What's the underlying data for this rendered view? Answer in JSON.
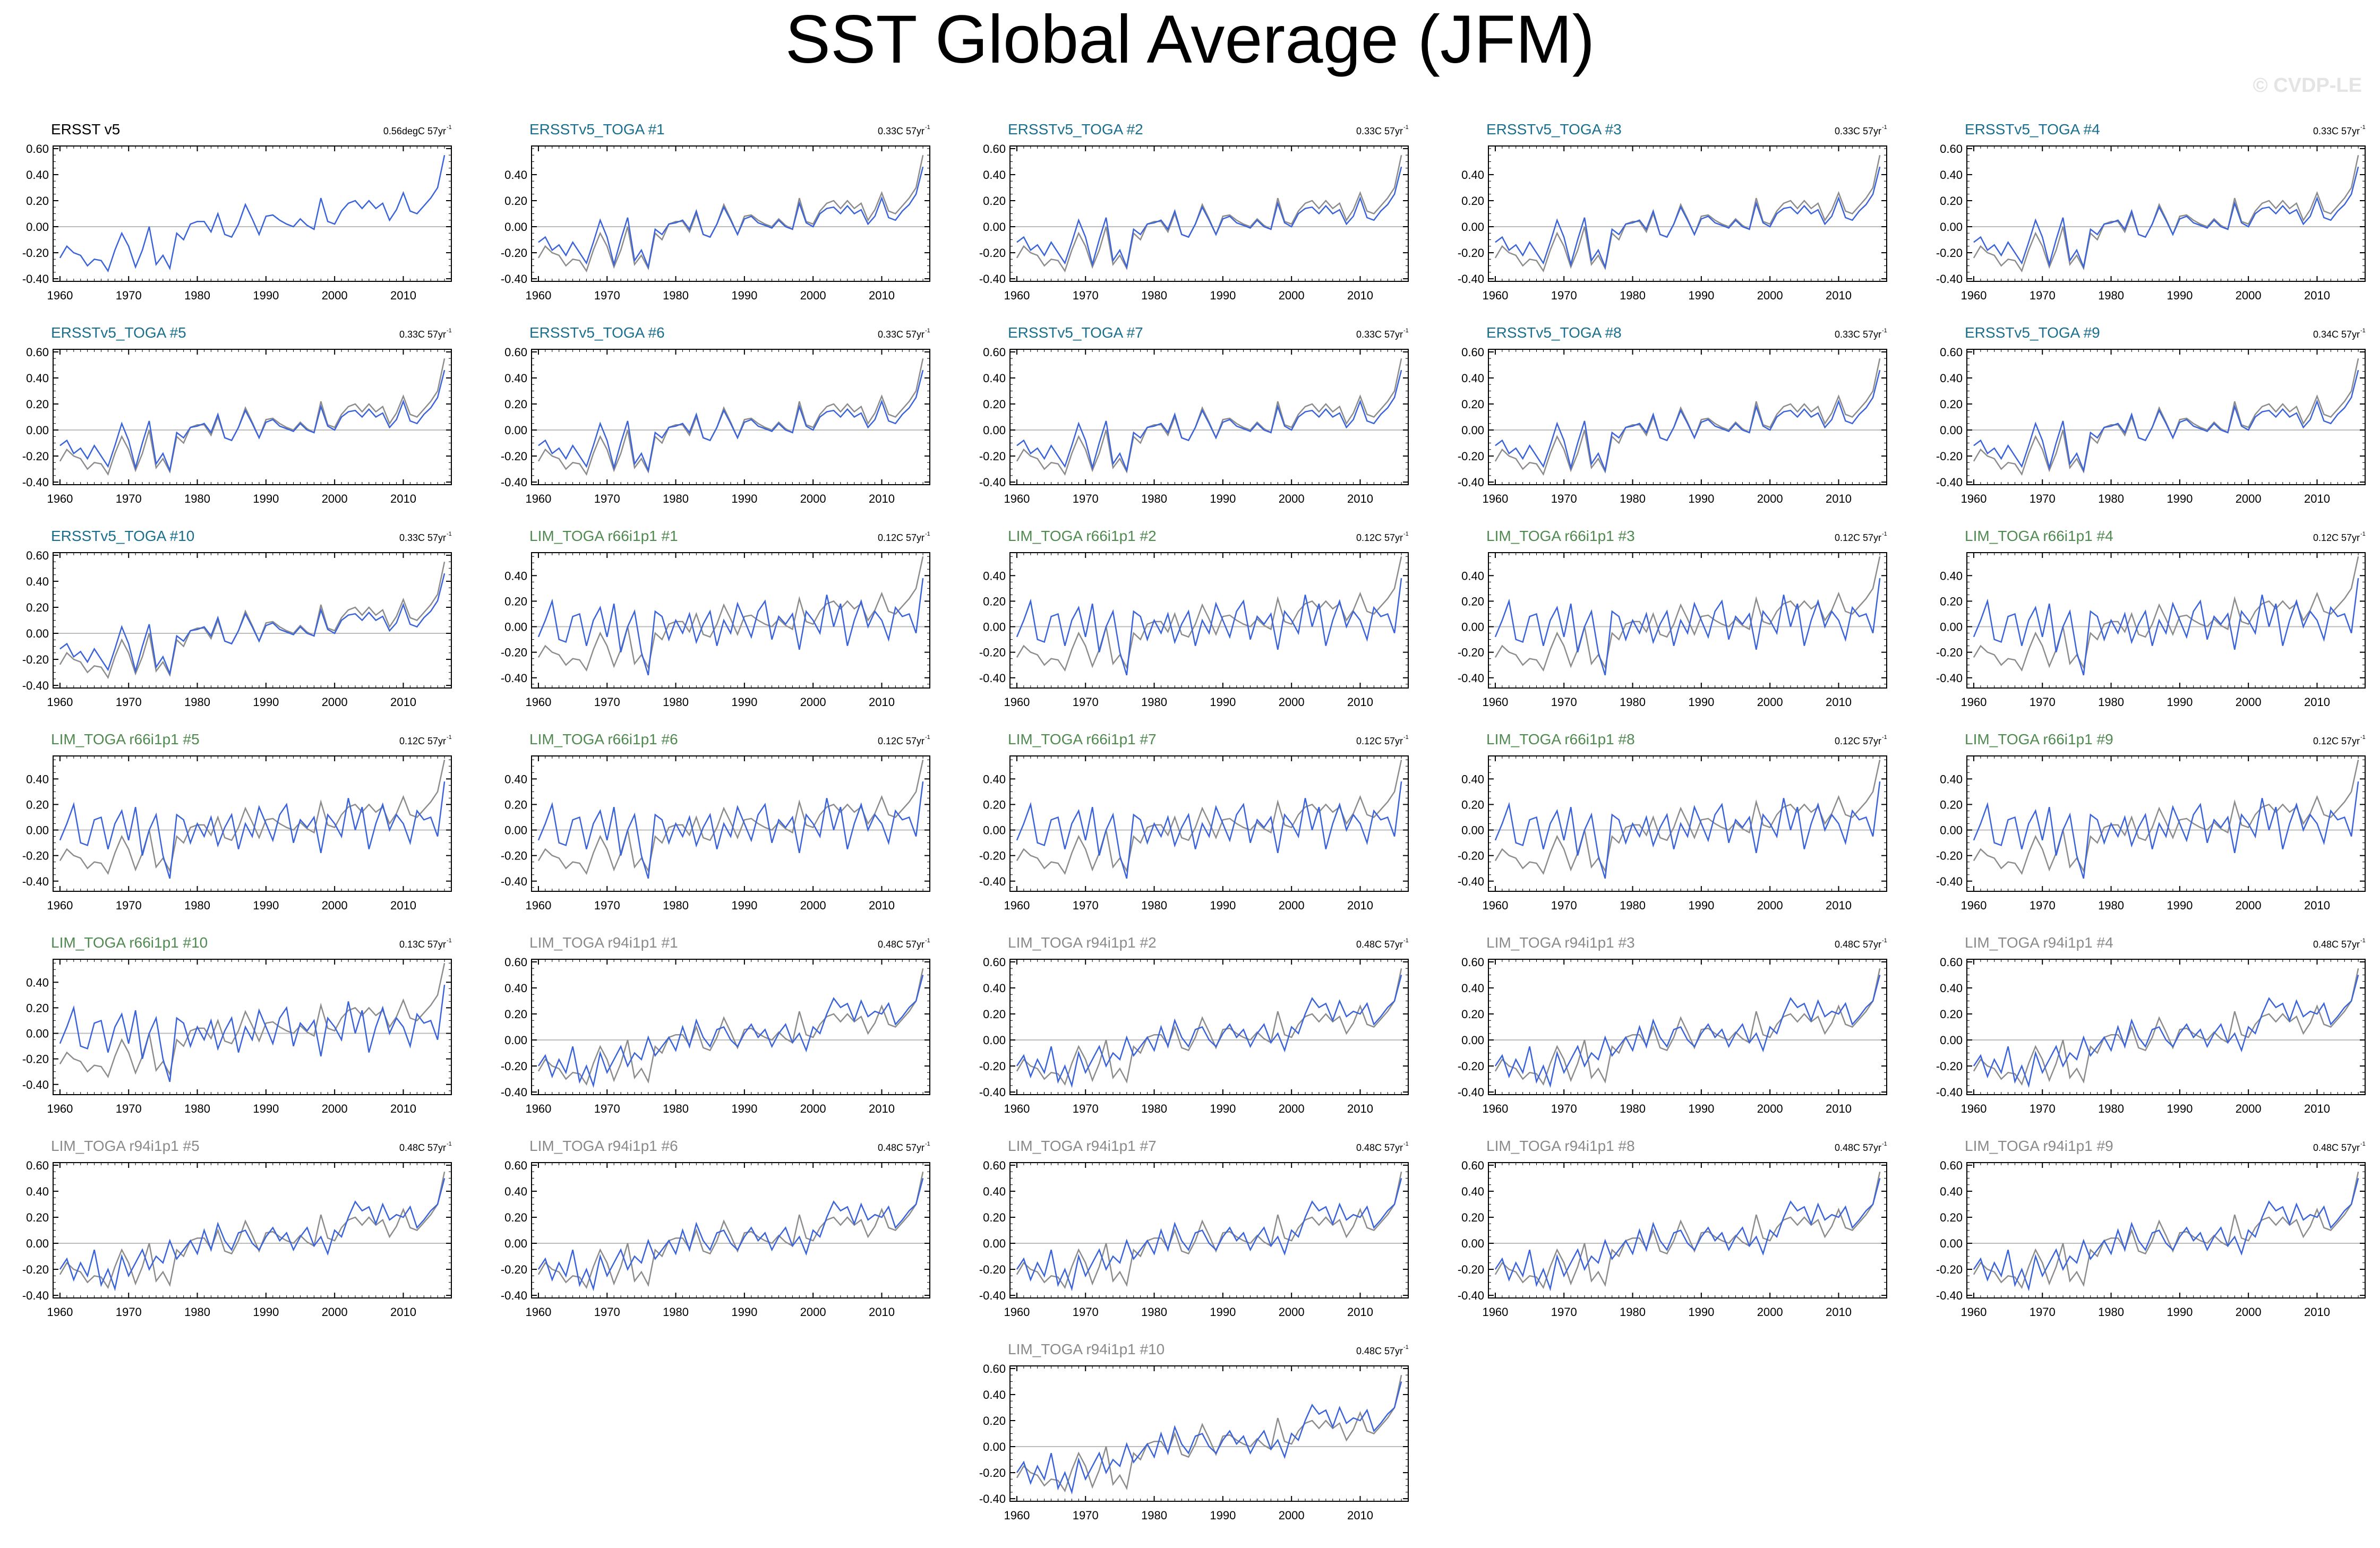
{
  "title": "SST Global Average (JFM)",
  "watermark": "© CVDP-LE",
  "colors": {
    "observation_title": "#000000",
    "ersst_toga_title": "#1a6e8e",
    "lim_r66_title": "#4f8a4f",
    "lim_r94_title": "#8a8a8a",
    "panel_line": "#3b63d9",
    "obs_line": "#8c8c8c",
    "zero_line": "#bbbbbb"
  },
  "chart_data": [
    {
      "type": "line",
      "title": "ERSST v5",
      "trend_value": "0.56degC 57yr",
      "trend_exponent": "-1",
      "group": "obs",
      "x_ticks": [
        "1960",
        "1970",
        "1980",
        "1990",
        "2000",
        "2010"
      ],
      "y_ticks": [
        "0.60",
        "0.40",
        "0.20",
        "0.00",
        "-0.20",
        "-0.40"
      ],
      "xlim": [
        1959,
        2017
      ],
      "ylim": [
        -0.42,
        0.62
      ]
    },
    {
      "type": "line",
      "title": "ERSSTv5_TOGA #1",
      "trend_value": "0.33C 57yr",
      "trend_exponent": "-1",
      "group": "ersst",
      "x_ticks": [
        "1960",
        "1970",
        "1980",
        "1990",
        "2000",
        "2010"
      ],
      "y_ticks": [
        "0.40",
        "0.20",
        "0.00",
        "-0.20",
        "-0.40"
      ],
      "xlim": [
        1959,
        2017
      ],
      "ylim": [
        -0.42,
        0.62
      ]
    },
    {
      "type": "line",
      "title": "ERSSTv5_TOGA #2",
      "trend_value": "0.33C 57yr",
      "trend_exponent": "-1",
      "group": "ersst",
      "x_ticks": [
        "1960",
        "1970",
        "1980",
        "1990",
        "2000",
        "2010"
      ],
      "y_ticks": [
        "0.60",
        "0.40",
        "0.20",
        "0.00",
        "-0.20",
        "-0.40"
      ],
      "xlim": [
        1959,
        2017
      ],
      "ylim": [
        -0.42,
        0.62
      ]
    },
    {
      "type": "line",
      "title": "ERSSTv5_TOGA #3",
      "trend_value": "0.33C 57yr",
      "trend_exponent": "-1",
      "group": "ersst",
      "x_ticks": [
        "1960",
        "1970",
        "1980",
        "1990",
        "2000",
        "2010"
      ],
      "y_ticks": [
        "0.40",
        "0.20",
        "0.00",
        "-0.20",
        "-0.40"
      ],
      "xlim": [
        1959,
        2017
      ],
      "ylim": [
        -0.42,
        0.62
      ]
    },
    {
      "type": "line",
      "title": "ERSSTv5_TOGA #4",
      "trend_value": "0.33C 57yr",
      "trend_exponent": "-1",
      "group": "ersst",
      "x_ticks": [
        "1960",
        "1970",
        "1980",
        "1990",
        "2000",
        "2010"
      ],
      "y_ticks": [
        "0.60",
        "0.40",
        "0.20",
        "0.00",
        "-0.20",
        "-0.40"
      ],
      "xlim": [
        1959,
        2017
      ],
      "ylim": [
        -0.42,
        0.62
      ]
    },
    {
      "type": "line",
      "title": "ERSSTv5_TOGA #5",
      "trend_value": "0.33C 57yr",
      "trend_exponent": "-1",
      "group": "ersst",
      "x_ticks": [
        "1960",
        "1970",
        "1980",
        "1990",
        "2000",
        "2010"
      ],
      "y_ticks": [
        "0.60",
        "0.40",
        "0.20",
        "0.00",
        "-0.20",
        "-0.40"
      ],
      "xlim": [
        1959,
        2017
      ],
      "ylim": [
        -0.42,
        0.62
      ]
    },
    {
      "type": "line",
      "title": "ERSSTv5_TOGA #6",
      "trend_value": "0.33C 57yr",
      "trend_exponent": "-1",
      "group": "ersst",
      "x_ticks": [
        "1960",
        "1970",
        "1980",
        "1990",
        "2000",
        "2010"
      ],
      "y_ticks": [
        "0.60",
        "0.40",
        "0.20",
        "0.00",
        "-0.20",
        "-0.40"
      ],
      "xlim": [
        1959,
        2017
      ],
      "ylim": [
        -0.42,
        0.62
      ]
    },
    {
      "type": "line",
      "title": "ERSSTv5_TOGA #7",
      "trend_value": "0.33C 57yr",
      "trend_exponent": "-1",
      "group": "ersst",
      "x_ticks": [
        "1960",
        "1970",
        "1980",
        "1990",
        "2000",
        "2010"
      ],
      "y_ticks": [
        "0.60",
        "0.40",
        "0.20",
        "0.00",
        "-0.20",
        "-0.40"
      ],
      "xlim": [
        1959,
        2017
      ],
      "ylim": [
        -0.42,
        0.62
      ]
    },
    {
      "type": "line",
      "title": "ERSSTv5_TOGA #8",
      "trend_value": "0.33C 57yr",
      "trend_exponent": "-1",
      "group": "ersst",
      "x_ticks": [
        "1960",
        "1970",
        "1980",
        "1990",
        "2000",
        "2010"
      ],
      "y_ticks": [
        "0.60",
        "0.40",
        "0.20",
        "0.00",
        "-0.20",
        "-0.40"
      ],
      "xlim": [
        1959,
        2017
      ],
      "ylim": [
        -0.42,
        0.62
      ]
    },
    {
      "type": "line",
      "title": "ERSSTv5_TOGA #9",
      "trend_value": "0.34C 57yr",
      "trend_exponent": "-1",
      "group": "ersst",
      "x_ticks": [
        "1960",
        "1970",
        "1980",
        "1990",
        "2000",
        "2010"
      ],
      "y_ticks": [
        "0.60",
        "0.40",
        "0.20",
        "0.00",
        "-0.20",
        "-0.40"
      ],
      "xlim": [
        1959,
        2017
      ],
      "ylim": [
        -0.42,
        0.62
      ]
    },
    {
      "type": "line",
      "title": "ERSSTv5_TOGA #10",
      "trend_value": "0.33C 57yr",
      "trend_exponent": "-1",
      "group": "ersst",
      "x_ticks": [
        "1960",
        "1970",
        "1980",
        "1990",
        "2000",
        "2010"
      ],
      "y_ticks": [
        "0.60",
        "0.40",
        "0.20",
        "0.00",
        "-0.20",
        "-0.40"
      ],
      "xlim": [
        1959,
        2017
      ],
      "ylim": [
        -0.42,
        0.62
      ]
    },
    {
      "type": "line",
      "title": "LIM_TOGA r66i1p1 #1",
      "trend_value": "0.12C 57yr",
      "trend_exponent": "-1",
      "group": "r66",
      "x_ticks": [
        "1960",
        "1970",
        "1980",
        "1990",
        "2000",
        "2010"
      ],
      "y_ticks": [
        "0.40",
        "0.20",
        "0.00",
        "-0.20",
        "-0.40"
      ],
      "xlim": [
        1959,
        2017
      ],
      "ylim": [
        -0.48,
        0.58
      ]
    },
    {
      "type": "line",
      "title": "LIM_TOGA r66i1p1 #2",
      "trend_value": "0.12C 57yr",
      "trend_exponent": "-1",
      "group": "r66",
      "x_ticks": [
        "1960",
        "1970",
        "1980",
        "1990",
        "2000",
        "2010"
      ],
      "y_ticks": [
        "0.40",
        "0.20",
        "0.00",
        "-0.20",
        "-0.40"
      ],
      "xlim": [
        1959,
        2017
      ],
      "ylim": [
        -0.48,
        0.58
      ]
    },
    {
      "type": "line",
      "title": "LIM_TOGA r66i1p1 #3",
      "trend_value": "0.12C 57yr",
      "trend_exponent": "-1",
      "group": "r66",
      "x_ticks": [
        "1960",
        "1970",
        "1980",
        "1990",
        "2000",
        "2010"
      ],
      "y_ticks": [
        "0.40",
        "0.20",
        "0.00",
        "-0.20",
        "-0.40"
      ],
      "xlim": [
        1959,
        2017
      ],
      "ylim": [
        -0.48,
        0.58
      ]
    },
    {
      "type": "line",
      "title": "LIM_TOGA r66i1p1 #4",
      "trend_value": "0.12C 57yr",
      "trend_exponent": "-1",
      "group": "r66",
      "x_ticks": [
        "1960",
        "1970",
        "1980",
        "1990",
        "2000",
        "2010"
      ],
      "y_ticks": [
        "0.40",
        "0.20",
        "0.00",
        "-0.20",
        "-0.40"
      ],
      "xlim": [
        1959,
        2017
      ],
      "ylim": [
        -0.48,
        0.58
      ]
    },
    {
      "type": "line",
      "title": "LIM_TOGA r66i1p1 #5",
      "trend_value": "0.12C 57yr",
      "trend_exponent": "-1",
      "group": "r66",
      "x_ticks": [
        "1960",
        "1970",
        "1980",
        "1990",
        "2000",
        "2010"
      ],
      "y_ticks": [
        "0.40",
        "0.20",
        "0.00",
        "-0.20",
        "-0.40"
      ],
      "xlim": [
        1959,
        2017
      ],
      "ylim": [
        -0.48,
        0.58
      ]
    },
    {
      "type": "line",
      "title": "LIM_TOGA r66i1p1 #6",
      "trend_value": "0.12C 57yr",
      "trend_exponent": "-1",
      "group": "r66",
      "x_ticks": [
        "1960",
        "1970",
        "1980",
        "1990",
        "2000",
        "2010"
      ],
      "y_ticks": [
        "0.40",
        "0.20",
        "0.00",
        "-0.20",
        "-0.40"
      ],
      "xlim": [
        1959,
        2017
      ],
      "ylim": [
        -0.48,
        0.58
      ]
    },
    {
      "type": "line",
      "title": "LIM_TOGA r66i1p1 #7",
      "trend_value": "0.12C 57yr",
      "trend_exponent": "-1",
      "group": "r66",
      "x_ticks": [
        "1960",
        "1970",
        "1980",
        "1990",
        "2000",
        "2010"
      ],
      "y_ticks": [
        "0.40",
        "0.20",
        "0.00",
        "-0.20",
        "-0.40"
      ],
      "xlim": [
        1959,
        2017
      ],
      "ylim": [
        -0.48,
        0.58
      ]
    },
    {
      "type": "line",
      "title": "LIM_TOGA r66i1p1 #8",
      "trend_value": "0.12C 57yr",
      "trend_exponent": "-1",
      "group": "r66",
      "x_ticks": [
        "1960",
        "1970",
        "1980",
        "1990",
        "2000",
        "2010"
      ],
      "y_ticks": [
        "0.40",
        "0.20",
        "0.00",
        "-0.20",
        "-0.40"
      ],
      "xlim": [
        1959,
        2017
      ],
      "ylim": [
        -0.48,
        0.58
      ]
    },
    {
      "type": "line",
      "title": "LIM_TOGA r66i1p1 #9",
      "trend_value": "0.12C 57yr",
      "trend_exponent": "-1",
      "group": "r66",
      "x_ticks": [
        "1960",
        "1970",
        "1980",
        "1990",
        "2000",
        "2010"
      ],
      "y_ticks": [
        "0.40",
        "0.20",
        "0.00",
        "-0.20",
        "-0.40"
      ],
      "xlim": [
        1959,
        2017
      ],
      "ylim": [
        -0.48,
        0.58
      ]
    },
    {
      "type": "line",
      "title": "LIM_TOGA r66i1p1 #10",
      "trend_value": "0.13C 57yr",
      "trend_exponent": "-1",
      "group": "r66",
      "x_ticks": [
        "1960",
        "1970",
        "1980",
        "1990",
        "2000",
        "2010"
      ],
      "y_ticks": [
        "0.40",
        "0.20",
        "0.00",
        "-0.20",
        "-0.40"
      ],
      "xlim": [
        1959,
        2017
      ],
      "ylim": [
        -0.48,
        0.58
      ]
    },
    {
      "type": "line",
      "title": "LIM_TOGA r94i1p1 #1",
      "trend_value": "0.48C 57yr",
      "trend_exponent": "-1",
      "group": "r94",
      "x_ticks": [
        "1960",
        "1970",
        "1980",
        "1990",
        "2000",
        "2010"
      ],
      "y_ticks": [
        "0.60",
        "0.40",
        "0.20",
        "0.00",
        "-0.20",
        "-0.40"
      ],
      "xlim": [
        1959,
        2017
      ],
      "ylim": [
        -0.42,
        0.62
      ]
    },
    {
      "type": "line",
      "title": "LIM_TOGA r94i1p1 #2",
      "trend_value": "0.48C 57yr",
      "trend_exponent": "-1",
      "group": "r94",
      "x_ticks": [
        "1960",
        "1970",
        "1980",
        "1990",
        "2000",
        "2010"
      ],
      "y_ticks": [
        "0.60",
        "0.40",
        "0.20",
        "0.00",
        "-0.20",
        "-0.40"
      ],
      "xlim": [
        1959,
        2017
      ],
      "ylim": [
        -0.42,
        0.62
      ]
    },
    {
      "type": "line",
      "title": "LIM_TOGA r94i1p1 #3",
      "trend_value": "0.48C 57yr",
      "trend_exponent": "-1",
      "group": "r94",
      "x_ticks": [
        "1960",
        "1970",
        "1980",
        "1990",
        "2000",
        "2010"
      ],
      "y_ticks": [
        "0.60",
        "0.40",
        "0.20",
        "0.00",
        "-0.20",
        "-0.40"
      ],
      "xlim": [
        1959,
        2017
      ],
      "ylim": [
        -0.42,
        0.62
      ]
    },
    {
      "type": "line",
      "title": "LIM_TOGA r94i1p1 #4",
      "trend_value": "0.48C 57yr",
      "trend_exponent": "-1",
      "group": "r94",
      "x_ticks": [
        "1960",
        "1970",
        "1980",
        "1990",
        "2000",
        "2010"
      ],
      "y_ticks": [
        "0.60",
        "0.40",
        "0.20",
        "0.00",
        "-0.20",
        "-0.40"
      ],
      "xlim": [
        1959,
        2017
      ],
      "ylim": [
        -0.42,
        0.62
      ]
    },
    {
      "type": "line",
      "title": "LIM_TOGA r94i1p1 #5",
      "trend_value": "0.48C 57yr",
      "trend_exponent": "-1",
      "group": "r94",
      "x_ticks": [
        "1960",
        "1970",
        "1980",
        "1990",
        "2000",
        "2010"
      ],
      "y_ticks": [
        "0.60",
        "0.40",
        "0.20",
        "0.00",
        "-0.20",
        "-0.40"
      ],
      "xlim": [
        1959,
        2017
      ],
      "ylim": [
        -0.42,
        0.62
      ]
    },
    {
      "type": "line",
      "title": "LIM_TOGA r94i1p1 #6",
      "trend_value": "0.48C 57yr",
      "trend_exponent": "-1",
      "group": "r94",
      "x_ticks": [
        "1960",
        "1970",
        "1980",
        "1990",
        "2000",
        "2010"
      ],
      "y_ticks": [
        "0.60",
        "0.40",
        "0.20",
        "0.00",
        "-0.20",
        "-0.40"
      ],
      "xlim": [
        1959,
        2017
      ],
      "ylim": [
        -0.42,
        0.62
      ]
    },
    {
      "type": "line",
      "title": "LIM_TOGA r94i1p1 #7",
      "trend_value": "0.48C 57yr",
      "trend_exponent": "-1",
      "group": "r94",
      "x_ticks": [
        "1960",
        "1970",
        "1980",
        "1990",
        "2000",
        "2010"
      ],
      "y_ticks": [
        "0.60",
        "0.40",
        "0.20",
        "0.00",
        "-0.20",
        "-0.40"
      ],
      "xlim": [
        1959,
        2017
      ],
      "ylim": [
        -0.42,
        0.62
      ]
    },
    {
      "type": "line",
      "title": "LIM_TOGA r94i1p1 #8",
      "trend_value": "0.48C 57yr",
      "trend_exponent": "-1",
      "group": "r94",
      "x_ticks": [
        "1960",
        "1970",
        "1980",
        "1990",
        "2000",
        "2010"
      ],
      "y_ticks": [
        "0.60",
        "0.40",
        "0.20",
        "0.00",
        "-0.20",
        "-0.40"
      ],
      "xlim": [
        1959,
        2017
      ],
      "ylim": [
        -0.42,
        0.62
      ]
    },
    {
      "type": "line",
      "title": "LIM_TOGA r94i1p1 #9",
      "trend_value": "0.48C 57yr",
      "trend_exponent": "-1",
      "group": "r94",
      "x_ticks": [
        "1960",
        "1970",
        "1980",
        "1990",
        "2000",
        "2010"
      ],
      "y_ticks": [
        "0.60",
        "0.40",
        "0.20",
        "0.00",
        "-0.20",
        "-0.40"
      ],
      "xlim": [
        1959,
        2017
      ],
      "ylim": [
        -0.42,
        0.62
      ]
    },
    {
      "type": "line",
      "title": "LIM_TOGA r94i1p1 #10",
      "trend_value": "0.48C 57yr",
      "trend_exponent": "-1",
      "group": "r94",
      "x_ticks": [
        "1960",
        "1970",
        "1980",
        "1990",
        "2000",
        "2010"
      ],
      "y_ticks": [
        "0.60",
        "0.40",
        "0.20",
        "0.00",
        "-0.20",
        "-0.40"
      ],
      "xlim": [
        1959,
        2017
      ],
      "ylim": [
        -0.42,
        0.62
      ]
    }
  ],
  "series_data": {
    "years": [
      1960,
      1961,
      1962,
      1963,
      1964,
      1965,
      1966,
      1967,
      1968,
      1969,
      1970,
      1971,
      1972,
      1973,
      1974,
      1975,
      1976,
      1977,
      1978,
      1979,
      1980,
      1981,
      1982,
      1983,
      1984,
      1985,
      1986,
      1987,
      1988,
      1989,
      1990,
      1991,
      1992,
      1993,
      1994,
      1995,
      1996,
      1997,
      1998,
      1999,
      2000,
      2001,
      2002,
      2003,
      2004,
      2005,
      2006,
      2007,
      2008,
      2009,
      2010,
      2011,
      2012,
      2013,
      2014,
      2015,
      2016
    ],
    "observed": [
      -0.24,
      -0.15,
      -0.2,
      -0.22,
      -0.3,
      -0.25,
      -0.26,
      -0.34,
      -0.18,
      -0.05,
      -0.15,
      -0.31,
      -0.18,
      0.0,
      -0.29,
      -0.22,
      -0.32,
      -0.05,
      -0.1,
      0.02,
      0.04,
      0.04,
      -0.04,
      0.1,
      -0.06,
      -0.08,
      0.02,
      0.17,
      0.06,
      -0.06,
      0.08,
      0.09,
      0.05,
      0.02,
      0.0,
      0.06,
      0.01,
      -0.02,
      0.22,
      0.04,
      0.02,
      0.12,
      0.18,
      0.2,
      0.14,
      0.2,
      0.14,
      0.18,
      0.05,
      0.13,
      0.26,
      0.12,
      0.1,
      0.16,
      0.22,
      0.3,
      0.55
    ],
    "ersst_toga": [
      -0.12,
      -0.08,
      -0.18,
      -0.14,
      -0.22,
      -0.12,
      -0.2,
      -0.28,
      -0.12,
      0.05,
      -0.08,
      -0.29,
      -0.1,
      0.07,
      -0.26,
      -0.18,
      -0.31,
      -0.02,
      -0.06,
      0.02,
      0.03,
      0.05,
      -0.02,
      0.12,
      -0.06,
      -0.08,
      0.02,
      0.15,
      0.05,
      -0.06,
      0.06,
      0.08,
      0.03,
      0.01,
      -0.01,
      0.05,
      0.0,
      -0.02,
      0.18,
      0.03,
      0.0,
      0.1,
      0.14,
      0.15,
      0.1,
      0.16,
      0.1,
      0.13,
      0.02,
      0.08,
      0.22,
      0.07,
      0.05,
      0.12,
      0.17,
      0.25,
      0.46
    ],
    "lim_r66": [
      -0.08,
      0.05,
      0.2,
      -0.1,
      -0.12,
      0.08,
      0.1,
      -0.15,
      0.05,
      0.15,
      -0.08,
      0.18,
      -0.2,
      0.0,
      0.12,
      -0.2,
      -0.38,
      0.12,
      0.08,
      -0.1,
      0.05,
      -0.05,
      0.1,
      -0.12,
      0.02,
      0.12,
      -0.15,
      0.05,
      -0.05,
      0.18,
      0.05,
      -0.08,
      0.12,
      0.2,
      -0.1,
      0.08,
      0.02,
      0.1,
      -0.18,
      0.12,
      0.05,
      -0.05,
      0.25,
      0.0,
      0.18,
      -0.15,
      0.05,
      0.2,
      0.0,
      0.12,
      0.05,
      -0.1,
      0.15,
      0.08,
      0.1,
      -0.05,
      0.38
    ],
    "lim_r94": [
      -0.2,
      -0.12,
      -0.28,
      -0.15,
      -0.25,
      -0.05,
      -0.32,
      -0.2,
      -0.35,
      -0.1,
      -0.25,
      -0.15,
      -0.05,
      -0.2,
      -0.1,
      -0.15,
      0.02,
      -0.12,
      -0.05,
      0.02,
      -0.08,
      0.1,
      -0.05,
      0.15,
      0.02,
      -0.05,
      0.08,
      0.1,
      0.0,
      -0.05,
      0.05,
      0.12,
      0.02,
      0.08,
      -0.05,
      0.05,
      0.12,
      -0.02,
      0.05,
      -0.08,
      0.1,
      0.05,
      0.2,
      0.32,
      0.25,
      0.28,
      0.15,
      0.3,
      0.18,
      0.22,
      0.2,
      0.28,
      0.12,
      0.18,
      0.25,
      0.3,
      0.5
    ]
  }
}
